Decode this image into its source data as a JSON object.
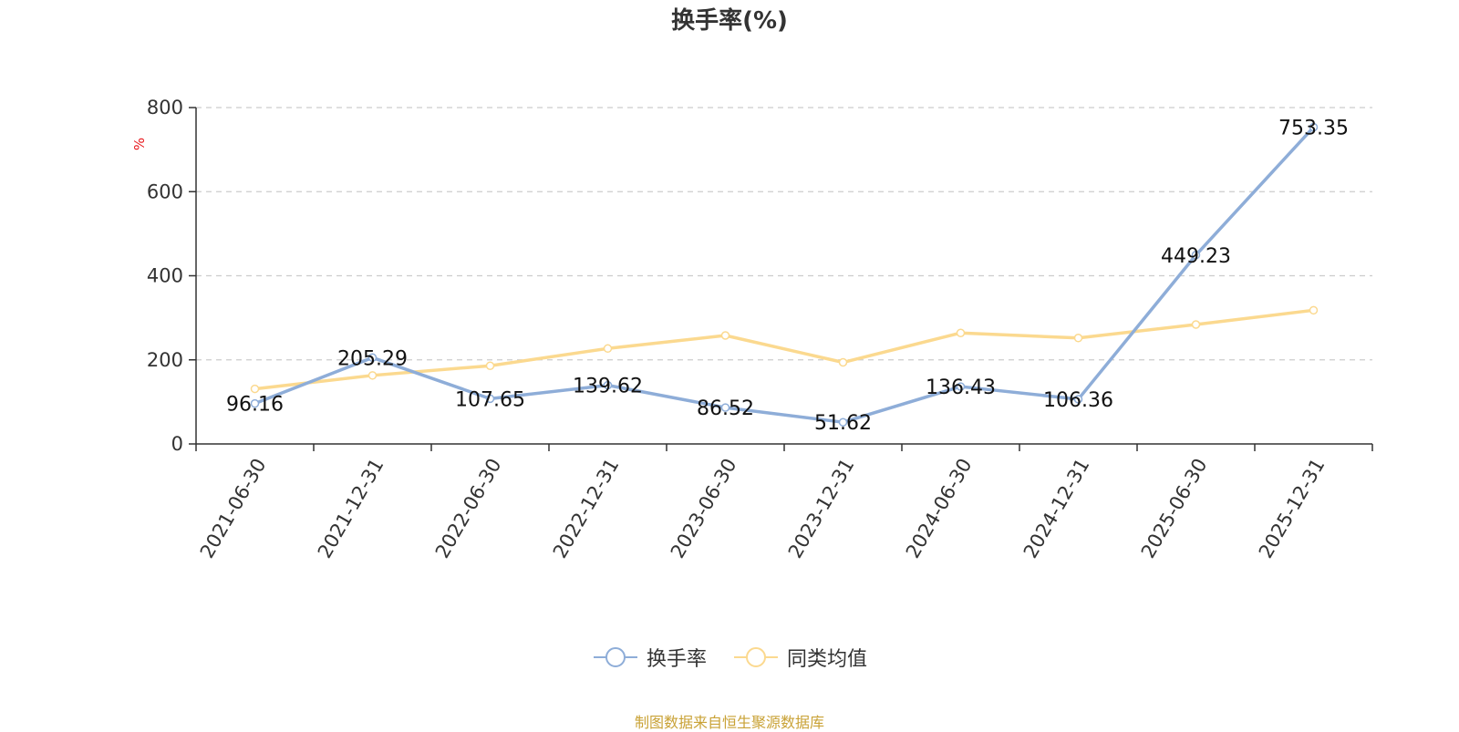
{
  "chart_data": {
    "type": "line",
    "title": "换手率(%)",
    "ylabel": "%",
    "ylim": [
      0,
      800
    ],
    "yticks": [
      0,
      200,
      400,
      600,
      800
    ],
    "categories": [
      "2021-06-30",
      "2021-12-31",
      "2022-06-30",
      "2022-12-31",
      "2023-06-30",
      "2023-12-31",
      "2024-06-30",
      "2024-12-31",
      "2025-06-30",
      "2025-12-31"
    ],
    "series": [
      {
        "name": "换手率",
        "color": "#8eadd8",
        "values": [
          96.16,
          205.29,
          107.65,
          139.62,
          86.52,
          51.62,
          136.43,
          106.36,
          449.23,
          753.35
        ],
        "labels": [
          "96.16",
          "205.29",
          "107.65",
          "139.62",
          "86.52",
          "51.62",
          "136.43",
          "106.36",
          "449.23",
          "753.35"
        ]
      },
      {
        "name": "同类均值",
        "color": "#fbd98f",
        "values": [
          131,
          163,
          186,
          227,
          258,
          194,
          264,
          252,
          284,
          318
        ]
      }
    ],
    "grid": true,
    "legend_position": "bottom"
  },
  "footer": {
    "source": "制图数据来自恒生聚源数据库"
  }
}
